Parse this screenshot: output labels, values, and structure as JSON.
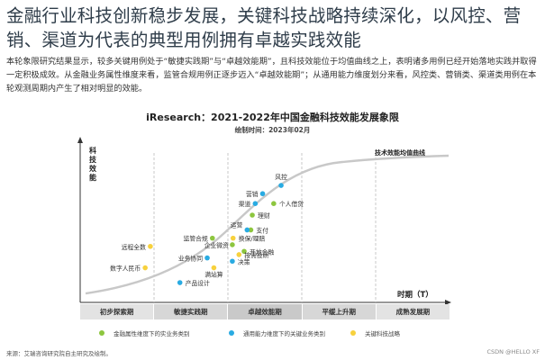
{
  "headline": "金融行业科技创新稳步发展，关键科技战略持续深化，以风控、营销、渠道为代表的典型用例拥有卓越实践效能",
  "body_text": "本轮象限研究结果显示，较多关键用例处于“敏捷实践期”与“卓越效能期”，且科技效能位于均值曲线之上，表明诸多用例已经开始落地实践并取得一定积极成效。从金融业务属性维度来看，监管合规用例正逐步迈入“卓越效能期”；从通用能力维度划分来看，风控类、营销类、渠道类用例在本轮观测周期内产生了相对明显的效能。",
  "chart": {
    "title": "iResearch：2021-2022年中国金融科技效能发展象限",
    "subtitle": "绘制时间：2023年02月",
    "y_axis_label": "科技效能",
    "x_axis_label": "时期（T）",
    "curve_label": "技术效能均值曲线"
  },
  "chart_data": {
    "type": "scatter",
    "title": "iResearch：2021-2022年中国金融科技效能发展象限",
    "xlabel": "时期（T）",
    "ylabel": "科技效能",
    "phases": [
      "初步探索期",
      "敏捷实践期",
      "卓越效能期",
      "平缓上升期",
      "成熟发展期"
    ],
    "series": [
      {
        "name": "金融属性维度下的实业务类别",
        "color": "#8dc63f",
        "points": [
          {
            "label": "企业微资",
            "x": 2.06,
            "y": 0.35
          },
          {
            "label": "个人借贷",
            "x": 2.62,
            "y": 0.6
          },
          {
            "label": "理财",
            "x": 2.33,
            "y": 0.53
          },
          {
            "label": "支付",
            "x": 2.31,
            "y": 0.44
          },
          {
            "label": "开放金融",
            "x": 2.22,
            "y": 0.31
          },
          {
            "label": "监管合规",
            "x": 1.79,
            "y": 0.39
          }
        ]
      },
      {
        "name": "通用能力维度下的关键业务类别",
        "color": "#29abe2",
        "points": [
          {
            "label": "风控",
            "x": 2.72,
            "y": 0.71
          },
          {
            "label": "营销",
            "x": 2.47,
            "y": 0.66
          },
          {
            "label": "渠道",
            "x": 2.37,
            "y": 0.6
          },
          {
            "label": "运营",
            "x": 2.26,
            "y": 0.44
          },
          {
            "label": "业务协同",
            "x": 1.72,
            "y": 0.27
          },
          {
            "label": "决策",
            "x": 2.06,
            "y": 0.25
          },
          {
            "label": "产品设计",
            "x": 1.35,
            "y": 0.12
          }
        ]
      },
      {
        "name": "关键科技战略",
        "color": "#f7d13d",
        "points": [
          {
            "label": "数字人民币",
            "x": 0.88,
            "y": 0.21
          },
          {
            "label": "远程全数",
            "x": 0.95,
            "y": 0.34
          },
          {
            "label": "满站算",
            "x": 1.81,
            "y": 0.21
          },
          {
            "label": "换保/理赔",
            "x": 2.07,
            "y": 0.39
          },
          {
            "label": "按需投研",
            "x": 2.15,
            "y": 0.29
          }
        ]
      }
    ]
  },
  "legend": [
    {
      "label": "金融属性维度下的实业务类别",
      "color": "#8dc63f"
    },
    {
      "label": "通用能力维度下的关键业务类别",
      "color": "#29abe2"
    },
    {
      "label": "关键科技战略",
      "color": "#f7d13d"
    }
  ],
  "source": "来源：艾瑞咨询研究院自主研究及绘制。",
  "watermark": "CSDN @HELLO XF"
}
